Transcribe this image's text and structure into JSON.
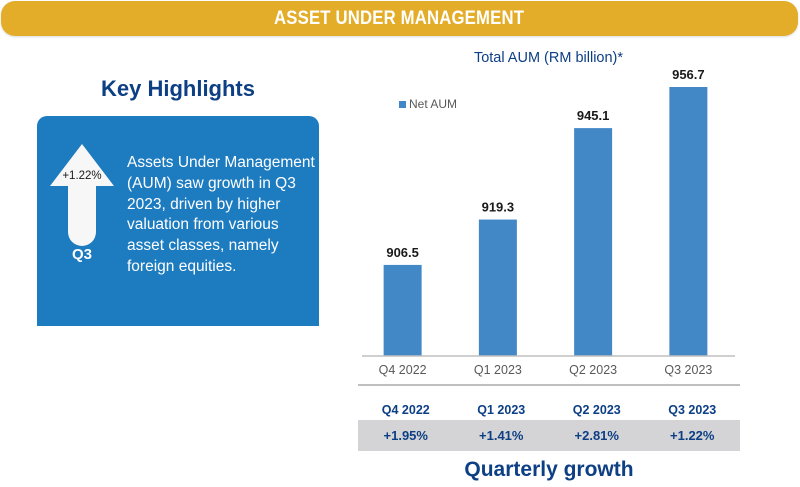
{
  "banner": {
    "title": "ASSET UNDER MANAGEMENT"
  },
  "key_highlights": {
    "title": "Key Highlights",
    "arrow_value": "+1.22%",
    "arrow_label": "Q3",
    "text": "Assets Under Management (AUM) saw growth in Q3 2023, driven by higher valuation from various asset classes, namely foreign equities."
  },
  "colors": {
    "banner": "#e3ad29",
    "box": "#1d7bc0",
    "bar": "#4388c6",
    "title": "#0d3f85",
    "growth_row": "#d4d4d6"
  },
  "chart_data": {
    "type": "bar",
    "title": "Total AUM (RM billion)*",
    "xlabel": "",
    "ylabel": "",
    "categories": [
      "Q4 2022",
      "Q1 2023",
      "Q2 2023",
      "Q3 2023"
    ],
    "series": [
      {
        "name": "Net AUM",
        "values": [
          906.5,
          919.3,
          945.1,
          956.7
        ]
      }
    ],
    "value_labels": [
      "906.5",
      "919.3",
      "945.1",
      "956.7"
    ],
    "ylim": [
      880.8,
      956.7
    ],
    "grid": false,
    "legend_position": "top-left"
  },
  "growth_table": {
    "headers": [
      "Q4 2022",
      "Q1 2023",
      "Q2 2023",
      "Q3 2023"
    ],
    "values": [
      "+1.95%",
      "+1.41%",
      "+2.81%",
      "+1.22%"
    ],
    "caption": "Quarterly growth"
  }
}
